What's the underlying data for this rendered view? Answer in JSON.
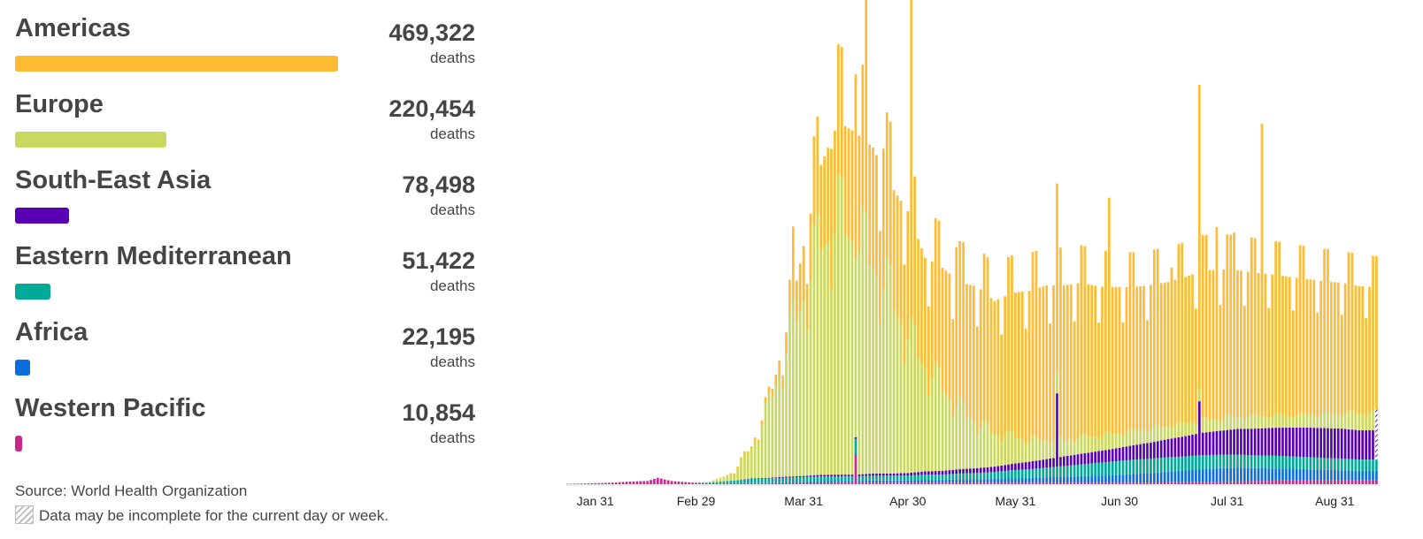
{
  "legend": {
    "deaths_unit": "deaths",
    "regions": [
      {
        "name": "Americas",
        "total": "469,322",
        "color": "#FFBB33",
        "share": 1.0
      },
      {
        "name": "Europe",
        "total": "220,454",
        "color": "#C9D85E",
        "share": 0.4697
      },
      {
        "name": "South-East Asia",
        "total": "78,498",
        "color": "#5A00B4",
        "share": 0.1673
      },
      {
        "name": "Eastern Mediterranean",
        "total": "51,422",
        "color": "#00AA96",
        "share": 0.1096
      },
      {
        "name": "Africa",
        "total": "22,195",
        "color": "#0A6EDC",
        "share": 0.0473
      },
      {
        "name": "Western Pacific",
        "total": "10,854",
        "color": "#C8288C",
        "share": 0.0231
      }
    ]
  },
  "source": "Source: World Health Organization",
  "note": "Data may be incomplete for the current day or week.",
  "note_icon": "hatch-pattern-icon",
  "chart_data": {
    "type": "bar",
    "stacked": true,
    "x_ticks": [
      "Jan 31",
      "Feb 29",
      "Mar 31",
      "Apr 30",
      "May 31",
      "Jun 30",
      "Jul 31",
      "Aug 31"
    ],
    "x_tick_days": [
      30,
      59,
      90,
      120,
      151,
      181,
      212,
      243
    ],
    "series_order": [
      "Western Pacific",
      "Africa",
      "Eastern Mediterranean",
      "South-East Asia",
      "Europe",
      "Americas"
    ],
    "first_day": 22,
    "last_day": 255,
    "approx_daily_deaths": [
      {
        "day": 22,
        "wp": 0.8,
        "af": 0,
        "em": 0,
        "sea": 0,
        "eu": 0,
        "am": 0
      },
      {
        "day": 28,
        "wp": 1.5,
        "af": 0,
        "em": 0,
        "sea": 0,
        "eu": 0,
        "am": 0
      },
      {
        "day": 35,
        "wp": 3.0,
        "af": 0,
        "em": 0,
        "sea": 0,
        "eu": 0,
        "am": 0
      },
      {
        "day": 40,
        "wp": 5.0,
        "af": 0,
        "em": 0,
        "sea": 0,
        "eu": 0,
        "am": 0
      },
      {
        "day": 45,
        "wp": 6.0,
        "af": 0,
        "em": 0,
        "sea": 0,
        "eu": 0,
        "am": 0
      },
      {
        "day": 48,
        "wp": 12.0,
        "af": 0,
        "em": 0,
        "sea": 0,
        "eu": 0,
        "am": 0
      },
      {
        "day": 52,
        "wp": 6.0,
        "af": 0,
        "em": 0,
        "sea": 0,
        "eu": 0,
        "am": 0
      },
      {
        "day": 58,
        "wp": 3.0,
        "af": 0,
        "em": 0,
        "sea": 0,
        "eu": 0,
        "am": 0
      },
      {
        "day": 62,
        "wp": 2.0,
        "af": 0,
        "em": 1,
        "sea": 0,
        "eu": 1,
        "am": 0
      },
      {
        "day": 66,
        "wp": 2.0,
        "af": 0,
        "em": 3,
        "sea": 0,
        "eu": 5,
        "am": 1
      },
      {
        "day": 70,
        "wp": 2.0,
        "af": 0,
        "em": 5,
        "sea": 0,
        "eu": 15,
        "am": 2
      },
      {
        "day": 75,
        "wp": 2.0,
        "af": 1,
        "em": 7,
        "sea": 1,
        "eu": 55,
        "am": 5
      },
      {
        "day": 80,
        "wp": 2.0,
        "af": 1,
        "em": 8,
        "sea": 1,
        "eu": 130,
        "am": 10
      },
      {
        "day": 85,
        "wp": 2.0,
        "af": 2,
        "em": 8,
        "sea": 2,
        "eu": 230,
        "am": 40
      },
      {
        "day": 90,
        "wp": 2.5,
        "af": 2,
        "em": 9,
        "sea": 2,
        "eu": 330,
        "am": 100
      },
      {
        "day": 95,
        "wp": 2.5,
        "af": 3,
        "em": 9,
        "sea": 3,
        "eu": 420,
        "am": 160
      },
      {
        "day": 100,
        "wp": 3.0,
        "af": 3,
        "em": 9,
        "sea": 3,
        "eu": 460,
        "am": 200
      },
      {
        "day": 105,
        "wp": 3.0,
        "af": 3,
        "em": 9,
        "sea": 3,
        "eu": 430,
        "am": 210
      },
      {
        "day": 110,
        "wp": 3.0,
        "af": 4,
        "em": 9,
        "sea": 4,
        "eu": 380,
        "am": 230
      },
      {
        "day": 115,
        "wp": 3.0,
        "af": 4,
        "em": 9,
        "sea": 4,
        "eu": 320,
        "am": 220
      },
      {
        "day": 120,
        "wp": 3.0,
        "af": 4,
        "em": 9,
        "sea": 5,
        "eu": 250,
        "am": 240
      },
      {
        "day": 125,
        "wp": 3.0,
        "af": 5,
        "em": 10,
        "sea": 6,
        "eu": 190,
        "am": 210
      },
      {
        "day": 130,
        "wp": 3.0,
        "af": 5,
        "em": 10,
        "sea": 7,
        "eu": 150,
        "am": 230
      },
      {
        "day": 135,
        "wp": 3.0,
        "af": 6,
        "em": 11,
        "sea": 8,
        "eu": 110,
        "am": 240
      },
      {
        "day": 140,
        "wp": 3.0,
        "af": 6,
        "em": 12,
        "sea": 9,
        "eu": 80,
        "am": 260
      },
      {
        "day": 145,
        "wp": 3.0,
        "af": 7,
        "em": 13,
        "sea": 10,
        "eu": 60,
        "am": 250
      },
      {
        "day": 150,
        "wp": 3.0,
        "af": 8,
        "em": 15,
        "sea": 12,
        "eu": 50,
        "am": 270
      },
      {
        "day": 155,
        "wp": 3.0,
        "af": 9,
        "em": 16,
        "sea": 14,
        "eu": 40,
        "am": 280
      },
      {
        "day": 160,
        "wp": 3.0,
        "af": 10,
        "em": 18,
        "sea": 16,
        "eu": 35,
        "am": 290
      },
      {
        "day": 165,
        "wp": 3.0,
        "af": 11,
        "em": 20,
        "sea": 18,
        "eu": 30,
        "am": 290
      },
      {
        "day": 170,
        "wp": 3.0,
        "af": 12,
        "em": 22,
        "sea": 20,
        "eu": 30,
        "am": 290
      },
      {
        "day": 175,
        "wp": 3.0,
        "af": 13,
        "em": 24,
        "sea": 22,
        "eu": 28,
        "am": 280
      },
      {
        "day": 180,
        "wp": 3.0,
        "af": 14,
        "em": 26,
        "sea": 24,
        "eu": 27,
        "am": 275
      },
      {
        "day": 185,
        "wp": 3.0,
        "af": 16,
        "em": 27,
        "sea": 27,
        "eu": 26,
        "am": 270
      },
      {
        "day": 190,
        "wp": 3.0,
        "af": 18,
        "em": 27,
        "sea": 30,
        "eu": 25,
        "am": 270
      },
      {
        "day": 195,
        "wp": 3.5,
        "af": 20,
        "em": 27,
        "sea": 34,
        "eu": 24,
        "am": 270
      },
      {
        "day": 200,
        "wp": 4.0,
        "af": 22,
        "em": 26,
        "sea": 38,
        "eu": 23,
        "am": 275
      },
      {
        "day": 205,
        "wp": 4.5,
        "af": 24,
        "em": 26,
        "sea": 42,
        "eu": 23,
        "am": 280
      },
      {
        "day": 210,
        "wp": 5.0,
        "af": 25,
        "em": 25,
        "sea": 45,
        "eu": 22,
        "am": 280
      },
      {
        "day": 215,
        "wp": 5.5,
        "af": 25,
        "em": 25,
        "sea": 48,
        "eu": 22,
        "am": 275
      },
      {
        "day": 220,
        "wp": 6.0,
        "af": 24,
        "em": 24,
        "sea": 50,
        "eu": 22,
        "am": 270
      },
      {
        "day": 225,
        "wp": 6.5,
        "af": 23,
        "em": 24,
        "sea": 52,
        "eu": 22,
        "am": 265
      },
      {
        "day": 230,
        "wp": 7.0,
        "af": 22,
        "em": 23,
        "sea": 54,
        "eu": 22,
        "am": 260
      },
      {
        "day": 235,
        "wp": 7.0,
        "af": 21,
        "em": 23,
        "sea": 55,
        "eu": 23,
        "am": 255
      },
      {
        "day": 240,
        "wp": 7.0,
        "af": 20,
        "em": 22,
        "sea": 56,
        "eu": 25,
        "am": 250
      },
      {
        "day": 245,
        "wp": 7.0,
        "af": 19,
        "em": 22,
        "sea": 56,
        "eu": 28,
        "am": 245
      },
      {
        "day": 250,
        "wp": 7.0,
        "af": 18,
        "em": 21,
        "sea": 55,
        "eu": 30,
        "am": 240
      },
      {
        "day": 255,
        "wp": 7.0,
        "af": 18,
        "em": 21,
        "sea": 55,
        "eu": 32,
        "am": 235
      }
    ],
    "spikes": [
      {
        "day": 87,
        "am": 60
      },
      {
        "day": 98,
        "am": 120
      },
      {
        "day": 105,
        "am": 180,
        "wp": 50,
        "em": 20
      },
      {
        "day": 108,
        "am": 420
      },
      {
        "day": 113,
        "am": 40
      },
      {
        "day": 121,
        "am": 380
      },
      {
        "day": 134,
        "am": 60
      },
      {
        "day": 163,
        "sea": 120
      },
      {
        "day": 178,
        "am": 100
      },
      {
        "day": 204,
        "am": 290,
        "sea": 60
      },
      {
        "day": 222,
        "am": 280
      },
      {
        "day": 214,
        "am": 70
      },
      {
        "day": 196,
        "am": 90
      },
      {
        "day": 209,
        "am": 80
      }
    ],
    "incomplete_last_day": true
  }
}
